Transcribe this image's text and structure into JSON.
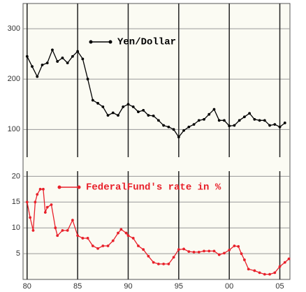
{
  "chart_data": [
    {
      "type": "line",
      "x": [
        1980.0,
        1980.5,
        1981.0,
        1981.5,
        1982.0,
        1982.5,
        1983.0,
        1983.5,
        1984.0,
        1984.5,
        1985.0,
        1985.5,
        1986.0,
        1986.5,
        1987.0,
        1987.5,
        1988.0,
        1988.5,
        1989.0,
        1989.5,
        1990.0,
        1990.5,
        1991.0,
        1991.5,
        1992.0,
        1992.5,
        1993.0,
        1993.5,
        1994.0,
        1994.5,
        1995.0,
        1995.5,
        1996.0,
        1996.5,
        1997.0,
        1997.5,
        1998.0,
        1998.5,
        1999.0,
        1999.5,
        2000.0,
        2000.5,
        2001.0,
        2001.5,
        2002.0,
        2002.5,
        2003.0,
        2003.5,
        2004.0,
        2004.5,
        2005.0,
        2005.5
      ],
      "series": [
        {
          "name": "Yen/Dollar",
          "color": "#000000",
          "values": [
            245,
            225,
            205,
            228,
            232,
            258,
            235,
            242,
            232,
            245,
            255,
            240,
            200,
            158,
            152,
            145,
            128,
            133,
            128,
            145,
            150,
            145,
            135,
            138,
            128,
            127,
            118,
            108,
            105,
            100,
            85,
            98,
            105,
            110,
            118,
            120,
            130,
            140,
            118,
            118,
            107,
            108,
            118,
            125,
            132,
            120,
            118,
            118,
            108,
            110,
            105,
            113
          ]
        }
      ],
      "xlim": [
        1979.6,
        2006.0
      ],
      "ylim": [
        45,
        350
      ],
      "yticks": [
        100,
        200,
        300
      ],
      "grid": true
    },
    {
      "type": "line",
      "x": [
        1980.0,
        1980.3,
        1980.6,
        1980.8,
        1981.0,
        1981.3,
        1981.6,
        1981.8,
        1982.0,
        1982.4,
        1982.8,
        1983.0,
        1983.5,
        1984.0,
        1984.5,
        1985.0,
        1985.5,
        1986.0,
        1986.5,
        1987.0,
        1987.5,
        1988.0,
        1988.5,
        1989.0,
        1989.3,
        1989.8,
        1990.0,
        1990.5,
        1991.0,
        1991.5,
        1992.0,
        1992.5,
        1993.0,
        1993.5,
        1994.0,
        1994.5,
        1995.0,
        1995.5,
        1996.0,
        1996.5,
        1997.0,
        1997.5,
        1998.0,
        1998.5,
        1999.0,
        1999.5,
        2000.0,
        2000.5,
        2000.9,
        2001.2,
        2001.5,
        2001.9,
        2002.5,
        2003.0,
        2003.5,
        2004.0,
        2004.5,
        2005.0,
        2005.5,
        2005.9
      ],
      "series": [
        {
          "name": "FederalFund's rate in %",
          "color": "#e8202a",
          "values": [
            15,
            12,
            9.5,
            15,
            16.5,
            17.5,
            17.5,
            13,
            14,
            14.5,
            10,
            8.5,
            9.5,
            9.5,
            11.5,
            8.5,
            8,
            8,
            6.5,
            6,
            6.5,
            6.5,
            7.5,
            9,
            9.7,
            9,
            8.5,
            8,
            6.5,
            5.8,
            4.5,
            3.3,
            3,
            3,
            3,
            4.3,
            5.8,
            5.9,
            5.4,
            5.3,
            5.3,
            5.5,
            5.5,
            5.5,
            4.8,
            5.1,
            5.7,
            6.5,
            6.4,
            5,
            3.8,
            2,
            1.7,
            1.3,
            1,
            1,
            1.3,
            2.5,
            3.3,
            4
          ]
        }
      ],
      "xlim": [
        1979.6,
        2006.0
      ],
      "xticks": [
        {
          "value": 1980,
          "label": "80"
        },
        {
          "value": 1985,
          "label": "85"
        },
        {
          "value": 1990,
          "label": "90"
        },
        {
          "value": 1995,
          "label": "95"
        },
        {
          "value": 2000,
          "label": "00"
        },
        {
          "value": 2005,
          "label": "05"
        }
      ],
      "ylim": [
        0,
        21
      ],
      "yticks": [
        5,
        10,
        15,
        20
      ],
      "grid": true
    }
  ]
}
